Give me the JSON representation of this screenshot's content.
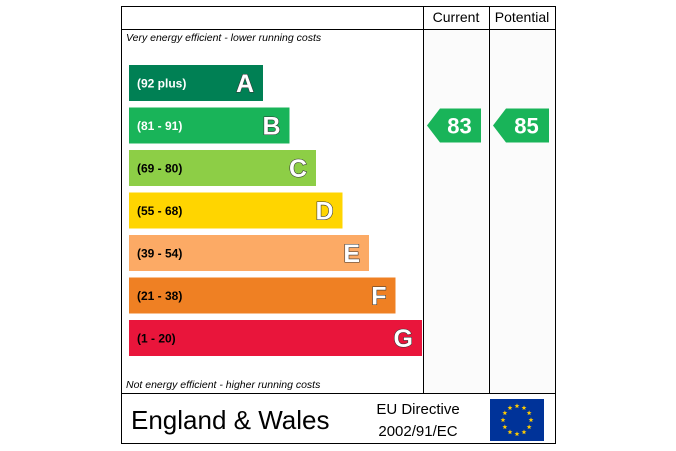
{
  "chart_data": {
    "type": "bar",
    "headers": {
      "current": "Current",
      "potential": "Potential"
    },
    "top_note": "Very energy efficient - lower running costs",
    "bottom_note": "Not energy efficient - higher running costs",
    "bands": [
      {
        "letter": "A",
        "range": "(92 plus)",
        "color": "#008054",
        "range_color": "#ffffff"
      },
      {
        "letter": "B",
        "range": "(81 - 91)",
        "color": "#19b459",
        "range_color": "#ffffff"
      },
      {
        "letter": "C",
        "range": "(69 - 80)",
        "color": "#8dce46",
        "range_color": "#000000"
      },
      {
        "letter": "D",
        "range": "(55 - 68)",
        "color": "#ffd500",
        "range_color": "#000000"
      },
      {
        "letter": "E",
        "range": "(39 - 54)",
        "color": "#fcaa65",
        "range_color": "#000000"
      },
      {
        "letter": "F",
        "range": "(21 - 38)",
        "color": "#ef8023",
        "range_color": "#000000"
      },
      {
        "letter": "G",
        "range": "(1 - 20)",
        "color": "#e9153b",
        "range_color": "#000000"
      }
    ],
    "current": {
      "value": 83,
      "band": "B",
      "color": "#19b459"
    },
    "potential": {
      "value": 85,
      "band": "B",
      "color": "#19b459"
    }
  },
  "footer": {
    "region": "England & Wales",
    "directive_line1": "EU Directive",
    "directive_line2": "2002/91/EC"
  },
  "colors": {
    "border": "#000000",
    "eu_flag_blue": "#003399",
    "eu_flag_stars": "#ffcc00"
  }
}
